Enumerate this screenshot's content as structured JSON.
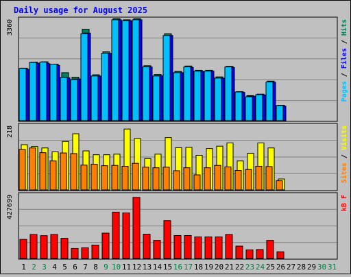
{
  "title": "Daily usage for August 2025",
  "colors": {
    "background": "#c0c0c0",
    "plot_background": "#c0c0c0",
    "title": "#0000ff",
    "border": "#000000",
    "gridline": "#808080",
    "hits": "#00805c",
    "files": "#0000ff",
    "pages": "#00c0ff",
    "visits": "#ffff00",
    "sites": "#ff8000",
    "kbytes": "#ff0000",
    "weekday_label": "#000000",
    "weekend_label": "#008040"
  },
  "chart_data": [
    {
      "type": "bar",
      "name": "hits-files-pages",
      "ymax_label": "3360",
      "ylim": [
        0,
        3360
      ],
      "grid": true,
      "legend": "right",
      "legend_labels": [
        "Pages",
        "Files",
        "Hits"
      ],
      "legend_separator": " / ",
      "categories": [
        "1",
        "2",
        "3",
        "4",
        "5",
        "6",
        "7",
        "8",
        "9",
        "10",
        "11",
        "12",
        "13",
        "14",
        "15",
        "16",
        "17",
        "18",
        "19",
        "20",
        "21",
        "22",
        "23",
        "24",
        "25",
        "26",
        "27",
        "28",
        "29",
        "30",
        "31"
      ],
      "series": [
        {
          "name": "Hits",
          "color_key": "hits",
          "values": [
            1740,
            1940,
            1950,
            1870,
            1590,
            1440,
            3030,
            1520,
            2280,
            3380,
            3340,
            3380,
            1820,
            1530,
            2880,
            1630,
            1810,
            1670,
            1670,
            1450,
            1800,
            960,
            830,
            880,
            1310,
            510,
            0,
            0,
            0,
            0,
            0
          ]
        },
        {
          "name": "Files",
          "color_key": "files",
          "values": [
            1700,
            1900,
            1900,
            1830,
            1420,
            1380,
            2900,
            1480,
            2230,
            3340,
            3310,
            3340,
            1780,
            1490,
            2820,
            1590,
            1760,
            1630,
            1640,
            1410,
            1760,
            940,
            810,
            850,
            1270,
            480,
            0,
            0,
            0,
            0,
            0
          ]
        },
        {
          "name": "Pages",
          "color_key": "pages",
          "values": [
            1730,
            1930,
            1940,
            1870,
            1430,
            1360,
            2880,
            1480,
            2230,
            3340,
            3310,
            3340,
            1780,
            1480,
            2820,
            1590,
            1780,
            1640,
            1640,
            1410,
            1780,
            950,
            790,
            860,
            1280,
            500,
            0,
            0,
            0,
            0,
            0
          ]
        }
      ]
    },
    {
      "type": "bar",
      "name": "visits-sites",
      "ymax_label": "218",
      "ylim": [
        0,
        218
      ],
      "grid": true,
      "legend": "right",
      "legend_labels": [
        "Sites",
        "Visits"
      ],
      "legend_separator": " / ",
      "categories": [
        "1",
        "2",
        "3",
        "4",
        "5",
        "6",
        "7",
        "8",
        "9",
        "10",
        "11",
        "12",
        "13",
        "14",
        "15",
        "16",
        "17",
        "18",
        "19",
        "20",
        "21",
        "22",
        "23",
        "24",
        "25",
        "26",
        "27",
        "28",
        "29",
        "30",
        "31"
      ],
      "series": [
        {
          "name": "Visits",
          "color_key": "visits",
          "values": [
            153,
            147,
            142,
            129,
            164,
            190,
            132,
            119,
            119,
            121,
            206,
            174,
            106,
            121,
            177,
            143,
            144,
            117,
            140,
            148,
            159,
            98,
            124,
            159,
            142,
            37,
            0,
            0,
            0,
            0,
            0
          ]
        },
        {
          "name": "Sites",
          "color_key": "sites",
          "values": [
            137,
            142,
            126,
            98,
            125,
            123,
            84,
            87,
            82,
            83,
            80,
            90,
            77,
            75,
            77,
            65,
            75,
            51,
            75,
            83,
            78,
            66,
            69,
            80,
            79,
            31,
            0,
            0,
            0,
            0,
            0
          ]
        }
      ]
    },
    {
      "type": "bar",
      "name": "kbytes",
      "ymax_label": "427699",
      "ylim": [
        0,
        427699
      ],
      "grid": true,
      "legend": "right",
      "legend_labels": [
        "kB F"
      ],
      "legend_separator": "",
      "categories": [
        "1",
        "2",
        "3",
        "4",
        "5",
        "6",
        "7",
        "8",
        "9",
        "10",
        "11",
        "12",
        "13",
        "14",
        "15",
        "16",
        "17",
        "18",
        "19",
        "20",
        "21",
        "22",
        "23",
        "24",
        "25",
        "26",
        "27",
        "28",
        "29",
        "30",
        "31"
      ],
      "series": [
        {
          "name": "kB F",
          "color_key": "kbytes",
          "values": [
            128000,
            161000,
            153000,
            161000,
            135000,
            67000,
            72000,
            90000,
            170000,
            311000,
            306000,
            410000,
            163000,
            121000,
            254000,
            154000,
            154000,
            145000,
            145000,
            145000,
            161000,
            83000,
            58000,
            60000,
            121000,
            45000,
            0,
            0,
            0,
            0,
            0
          ]
        }
      ]
    }
  ],
  "x_labels": [
    {
      "label": "1",
      "weekend": false
    },
    {
      "label": "2",
      "weekend": true
    },
    {
      "label": "3",
      "weekend": true
    },
    {
      "label": "4",
      "weekend": false
    },
    {
      "label": "5",
      "weekend": false
    },
    {
      "label": "6",
      "weekend": false
    },
    {
      "label": "7",
      "weekend": false
    },
    {
      "label": "8",
      "weekend": false
    },
    {
      "label": "9",
      "weekend": true
    },
    {
      "label": "10",
      "weekend": true
    },
    {
      "label": "11",
      "weekend": false
    },
    {
      "label": "12",
      "weekend": false
    },
    {
      "label": "13",
      "weekend": false
    },
    {
      "label": "14",
      "weekend": false
    },
    {
      "label": "15",
      "weekend": false
    },
    {
      "label": "16",
      "weekend": true
    },
    {
      "label": "17",
      "weekend": true
    },
    {
      "label": "18",
      "weekend": false
    },
    {
      "label": "19",
      "weekend": false
    },
    {
      "label": "20",
      "weekend": false
    },
    {
      "label": "21",
      "weekend": false
    },
    {
      "label": "22",
      "weekend": false
    },
    {
      "label": "23",
      "weekend": true
    },
    {
      "label": "24",
      "weekend": true
    },
    {
      "label": "25",
      "weekend": false
    },
    {
      "label": "26",
      "weekend": false
    },
    {
      "label": "27",
      "weekend": false
    },
    {
      "label": "28",
      "weekend": false
    },
    {
      "label": "29",
      "weekend": false
    },
    {
      "label": "30",
      "weekend": true
    },
    {
      "label": "31",
      "weekend": true
    }
  ]
}
